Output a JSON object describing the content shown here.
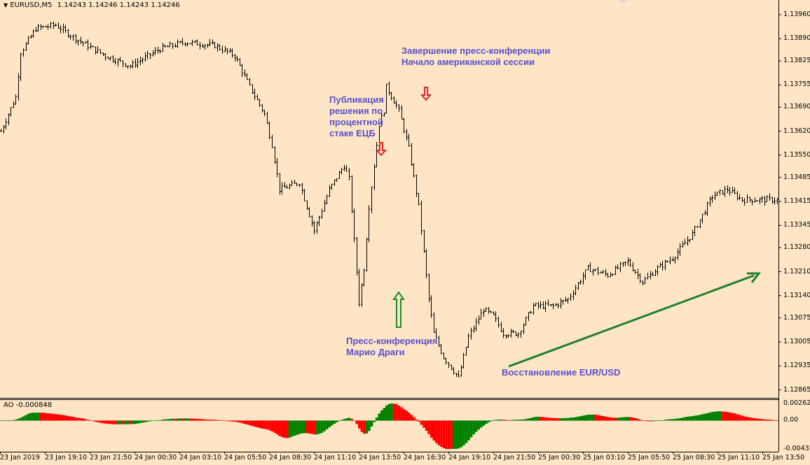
{
  "window": {
    "title_symbol": "EURUSD,M5",
    "ohlc": "1.14243 1.14246 1.14243 1.14246"
  },
  "indicator": {
    "name": "AO",
    "value": "-0.000848"
  },
  "colors": {
    "background": "#FDE5C5",
    "bars": "#000000",
    "ao_up": "#008000",
    "ao_down": "#FF0000",
    "annotation_text": "#5A4FCF",
    "arrow_down": "#E0242A",
    "arrow_up": "#1E8C2A",
    "trend_arrow": "#1E7F2C"
  },
  "annotations": {
    "drag_press": [
      "Пресс-конференция",
      "Марио Драги"
    ],
    "ecb_decision": [
      "Публикация",
      "решения по",
      "процентной",
      "стаке ЕЦБ"
    ],
    "conf_end": [
      "Завершение пресс-конференции",
      "Начало американской сессии"
    ],
    "recovery": "Восстановление EUR/USD"
  },
  "chart_data": [
    {
      "type": "ohlc",
      "symbol": "EURUSD",
      "timeframe": "M5",
      "price_axis_labels": [
        "1.13960",
        "1.13890",
        "1.13825",
        "1.13755",
        "1.13690",
        "1.13620",
        "1.13550",
        "1.13485",
        "1.13415",
        "1.13345",
        "1.13280",
        "1.13210",
        "1.13140",
        "1.13075",
        "1.13005",
        "1.12935",
        "1.12865"
      ],
      "ylim": [
        1.1284,
        1.13995
      ],
      "time_axis_labels": [
        "23 Jan 2019",
        "23 Jan 19:10",
        "23 Jan 21:50",
        "24 Jan 00:30",
        "24 Jan 03:10",
        "24 Jan 05:50",
        "24 Jan 08:30",
        "24 Jan 11:10",
        "24 Jan 13:50",
        "24 Jan 16:30",
        "24 Jan 19:10",
        "24 Jan 21:50",
        "25 Jan 00:30",
        "25 Jan 03:10",
        "25 Jan 05:50",
        "25 Jan 08:30",
        "25 Jan 11:10",
        "25 Jan 13:50"
      ],
      "bars_per_time_label": 32,
      "close_path": [
        [
          0,
          1.1362
        ],
        [
          6,
          1.1372
        ],
        [
          8,
          1.1385
        ],
        [
          14,
          1.1392
        ],
        [
          22,
          1.1393
        ],
        [
          30,
          1.1389
        ],
        [
          42,
          1.1384
        ],
        [
          52,
          1.1381
        ],
        [
          64,
          1.1386
        ],
        [
          74,
          1.1388
        ],
        [
          86,
          1.1387
        ],
        [
          94,
          1.1384
        ],
        [
          100,
          1.1375
        ],
        [
          106,
          1.1367
        ],
        [
          109,
          1.1358
        ],
        [
          112,
          1.1345
        ],
        [
          120,
          1.1347
        ],
        [
          126,
          1.1333
        ],
        [
          132,
          1.1345
        ],
        [
          138,
          1.1352
        ],
        [
          140,
          1.1348
        ],
        [
          142,
          1.133
        ],
        [
          144,
          1.1312
        ],
        [
          146,
          1.1322
        ],
        [
          148,
          1.134
        ],
        [
          152,
          1.1364
        ],
        [
          154,
          1.1368
        ],
        [
          155,
          1.1375
        ],
        [
          160,
          1.1368
        ],
        [
          164,
          1.1357
        ],
        [
          168,
          1.134
        ],
        [
          172,
          1.1313
        ],
        [
          174,
          1.1303
        ],
        [
          178,
          1.1296
        ],
        [
          180,
          1.1294
        ],
        [
          184,
          1.129
        ],
        [
          188,
          1.1302
        ],
        [
          194,
          1.131
        ],
        [
          198,
          1.1308
        ],
        [
          202,
          1.1303
        ],
        [
          208,
          1.1303
        ],
        [
          214,
          1.1311
        ],
        [
          222,
          1.1311
        ],
        [
          228,
          1.1313
        ],
        [
          236,
          1.1322
        ],
        [
          244,
          1.132
        ],
        [
          252,
          1.1324
        ],
        [
          258,
          1.1318
        ],
        [
          264,
          1.1322
        ],
        [
          270,
          1.1325
        ],
        [
          278,
          1.1332
        ],
        [
          286,
          1.1343
        ],
        [
          292,
          1.1345
        ],
        [
          298,
          1.1342
        ]
      ],
      "annotation_events": [
        {
          "text": "Публикация решения по процентной стаке ЕЦБ",
          "marker": "down-arrow",
          "price": 1.1358
        },
        {
          "text": "Пресс-конференция Марио Драги",
          "marker": "up-arrow",
          "price": 1.1307
        },
        {
          "text": "Завершение пресс-конференции Начало американской сессии",
          "marker": "down-arrow",
          "price": 1.1372
        },
        {
          "text": "Восстановление EUR/USD",
          "marker": "trend-arrow",
          "from_price": 1.1296,
          "to_price": 1.1322
        }
      ]
    },
    {
      "type": "bar",
      "indicator": "AO",
      "current_value": -0.000848,
      "axis_labels": [
        "0.002621",
        "0.00",
        "-0.004333"
      ],
      "ylim": [
        -0.004333,
        0.002621
      ],
      "sign_colors": {
        "up": "#008000",
        "down": "#FF0000"
      }
    }
  ]
}
